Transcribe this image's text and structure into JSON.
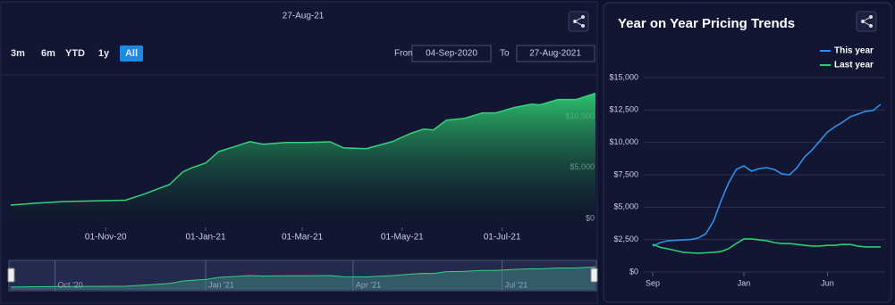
{
  "toolbar": {
    "range_buttons": [
      "3m",
      "6m",
      "YTD",
      "1y",
      "All"
    ],
    "active_button": 4,
    "from_label": "From",
    "from_value": "04-Sep-2020",
    "to_label": "To",
    "to_value": "27-Aug-2021"
  },
  "chart_data": [
    {
      "type": "area",
      "title": "27-Aug-21",
      "color": "#35d27a",
      "xlim": [
        "2020-09-04",
        "2021-08-27"
      ],
      "x": [
        "2020-09-04",
        "2020-09-19",
        "2020-10-06",
        "2020-10-22",
        "2020-11-13",
        "2020-11-24",
        "2020-12-10",
        "2020-12-18",
        "2020-12-24",
        "2021-01-01",
        "2021-01-09",
        "2021-01-18",
        "2021-01-28",
        "2021-02-05",
        "2021-02-19",
        "2021-03-04",
        "2021-03-18",
        "2021-03-26",
        "2021-04-09",
        "2021-04-17",
        "2021-04-25",
        "2021-05-06",
        "2021-05-14",
        "2021-05-20",
        "2021-05-28",
        "2021-06-08",
        "2021-06-19",
        "2021-06-27",
        "2021-07-08",
        "2021-07-19",
        "2021-07-24",
        "2021-08-04",
        "2021-08-15",
        "2021-08-27"
      ],
      "values": [
        1490,
        1670,
        1840,
        1890,
        1970,
        2540,
        3510,
        4740,
        5180,
        5610,
        6750,
        7190,
        7720,
        7460,
        7630,
        7630,
        7700,
        7110,
        7020,
        7370,
        7720,
        8510,
        8950,
        8860,
        9820,
        10000,
        10530,
        10530,
        11050,
        11400,
        11320,
        11840,
        11840,
        12460
      ],
      "ylim": [
        0,
        14000
      ],
      "yticks": [
        {
          "value": 0,
          "label": "$0"
        },
        {
          "value": 5000,
          "label": "$5,000"
        },
        {
          "value": 10000,
          "label": "$10,000"
        }
      ],
      "xticks": [
        {
          "value": "2020-11-01",
          "label": "01-Nov-20"
        },
        {
          "value": "2021-01-01",
          "label": "01-Jan-21"
        },
        {
          "value": "2021-03-01",
          "label": "01-Mar-21"
        },
        {
          "value": "2021-05-01",
          "label": "01-May-21"
        },
        {
          "value": "2021-07-01",
          "label": "01-Jul-21"
        }
      ],
      "grid": false,
      "navigator": {
        "xticks": [
          {
            "value": "2020-10-01",
            "label": "Oct '20"
          },
          {
            "value": "2021-01-01",
            "label": "Jan '21"
          },
          {
            "value": "2021-04-01",
            "label": "Apr '21"
          },
          {
            "value": "2021-07-01",
            "label": "Jul '21"
          }
        ]
      }
    },
    {
      "type": "line",
      "title": "Year on Year Pricing Trends",
      "legend": "upper right",
      "grid": true,
      "categories": [
        "Sep",
        null,
        null,
        null,
        null,
        null,
        null,
        null,
        null,
        null,
        null,
        null,
        "Jan",
        null,
        null,
        null,
        null,
        null,
        null,
        null,
        null,
        null,
        null,
        "Jun",
        null,
        null,
        null,
        null,
        null,
        null,
        null
      ],
      "series": [
        {
          "name": "This year",
          "color": "#2f8fe8",
          "values": [
            2000,
            2270,
            2410,
            2440,
            2480,
            2510,
            2620,
            2960,
            3920,
            5500,
            6880,
            7910,
            8190,
            7780,
            7980,
            8050,
            7910,
            7570,
            7500,
            8050,
            8880,
            9430,
            10120,
            10800,
            11220,
            11560,
            11980,
            12180,
            12390,
            12460,
            12940
          ]
        },
        {
          "name": "Last year",
          "color": "#2ecc71",
          "values": [
            2130,
            1900,
            1790,
            1650,
            1520,
            1480,
            1450,
            1480,
            1520,
            1580,
            1800,
            2200,
            2550,
            2550,
            2480,
            2410,
            2270,
            2200,
            2200,
            2130,
            2060,
            2000,
            2000,
            2060,
            2060,
            2130,
            2130,
            2000,
            1930,
            1930,
            1930
          ]
        }
      ],
      "ylim": [
        0,
        15000
      ],
      "yticks": [
        {
          "value": 0,
          "label": "$0"
        },
        {
          "value": 2500,
          "label": "$2,500"
        },
        {
          "value": 5000,
          "label": "$5,000"
        },
        {
          "value": 7500,
          "label": "$7,500"
        },
        {
          "value": 10000,
          "label": "$10,000"
        },
        {
          "value": 12500,
          "label": "$12,500"
        },
        {
          "value": 15000,
          "label": "$15,000"
        }
      ]
    }
  ]
}
